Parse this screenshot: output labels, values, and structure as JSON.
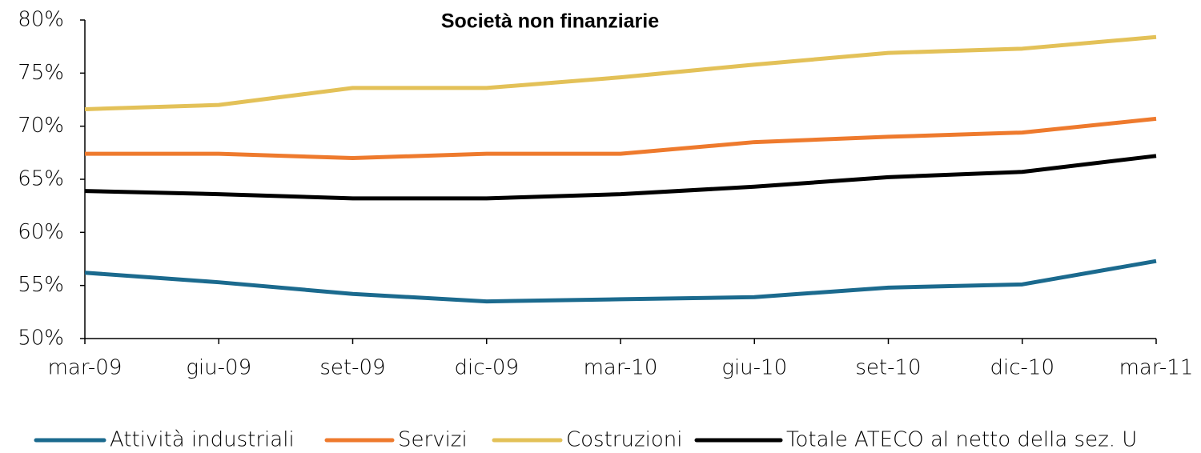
{
  "chart_data": {
    "type": "line",
    "title": "Società non finanziarie",
    "categories": [
      "mar-09",
      "giu-09",
      "set-09",
      "dic-09",
      "mar-10",
      "giu-10",
      "set-10",
      "dic-10",
      "mar-11"
    ],
    "series": [
      {
        "name": "Attività industriali",
        "color": "#1b6a8e",
        "values": [
          56.2,
          55.3,
          54.2,
          53.5,
          53.7,
          53.9,
          54.8,
          55.1,
          57.3
        ]
      },
      {
        "name": "Servizi",
        "color": "#ee7a2d",
        "values": [
          67.4,
          67.4,
          67.0,
          67.4,
          67.4,
          68.5,
          69.0,
          69.4,
          70.7
        ]
      },
      {
        "name": "Costruzioni",
        "color": "#e3c158",
        "values": [
          71.6,
          72.0,
          73.6,
          73.6,
          74.6,
          75.8,
          76.9,
          77.3,
          78.4
        ]
      },
      {
        "name": "Totale ATECO al netto della sez. U",
        "color": "#000000",
        "values": [
          63.9,
          63.6,
          63.2,
          63.2,
          63.6,
          64.3,
          65.2,
          65.7,
          67.2
        ]
      }
    ],
    "ylim": [
      50,
      80
    ],
    "yticks": [
      {
        "value": 50,
        "label": "50%"
      },
      {
        "value": 55,
        "label": "55%"
      },
      {
        "value": 60,
        "label": "60%"
      },
      {
        "value": 65,
        "label": "65%"
      },
      {
        "value": 70,
        "label": "70%"
      },
      {
        "value": 75,
        "label": "75%"
      },
      {
        "value": 80,
        "label": "80%"
      }
    ],
    "grid": false,
    "legend": "bottom"
  }
}
